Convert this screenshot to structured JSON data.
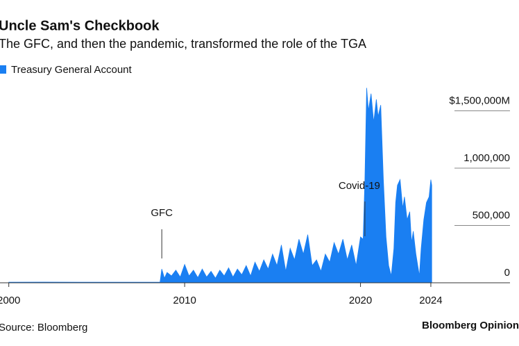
{
  "chart_data": {
    "type": "area",
    "title": "Uncle Sam's Checkbook",
    "subtitle": "The GFC, and then the pandemic, transformed the role of the TGA",
    "source": "Source: Bloomberg",
    "brand": "Bloomberg Opinion",
    "annotations": [
      "GFC",
      "Covid-19"
    ],
    "x": [
      2000,
      2002,
      2004,
      2006,
      2008.6,
      2008.7,
      2008.85,
      2009,
      2009.25,
      2009.5,
      2009.75,
      2010,
      2010.25,
      2010.5,
      2010.75,
      2011,
      2011.25,
      2011.5,
      2011.75,
      2012,
      2012.25,
      2012.5,
      2012.75,
      2013,
      2013.25,
      2013.5,
      2013.75,
      2014,
      2014.25,
      2014.5,
      2014.75,
      2015,
      2015.25,
      2015.5,
      2015.75,
      2016,
      2016.25,
      2016.5,
      2016.75,
      2017,
      2017.25,
      2017.5,
      2017.75,
      2018,
      2018.25,
      2018.5,
      2018.75,
      2019,
      2019.25,
      2019.5,
      2019.75,
      2020,
      2020.15,
      2020.25,
      2020.35,
      2020.45,
      2020.6,
      2020.75,
      2020.9,
      2021,
      2021.15,
      2021.3,
      2021.45,
      2021.6,
      2021.75,
      2021.9,
      2022,
      2022.1,
      2022.25,
      2022.4,
      2022.5,
      2022.65,
      2022.8,
      2022.9,
      2023,
      2023.15,
      2023.35,
      2023.45,
      2023.6,
      2023.75,
      2023.9,
      2024,
      2024.05
    ],
    "series": [
      {
        "name": "Treasury General Account",
        "color": "#1a7ff2",
        "values": [
          5000,
          6000,
          5000,
          5000,
          5000,
          120000,
          40000,
          90000,
          60000,
          110000,
          50000,
          160000,
          60000,
          110000,
          45000,
          120000,
          50000,
          100000,
          40000,
          110000,
          60000,
          130000,
          50000,
          120000,
          70000,
          150000,
          60000,
          180000,
          100000,
          200000,
          120000,
          250000,
          150000,
          330000,
          100000,
          300000,
          200000,
          380000,
          250000,
          420000,
          150000,
          200000,
          100000,
          250000,
          180000,
          350000,
          250000,
          380000,
          200000,
          330000,
          150000,
          400000,
          380000,
          900000,
          1700000,
          1500000,
          1650000,
          1400000,
          1600000,
          1450000,
          1550000,
          900000,
          400000,
          150000,
          60000,
          300000,
          700000,
          850000,
          900000,
          650000,
          750000,
          550000,
          620000,
          350000,
          450000,
          250000,
          60000,
          300000,
          550000,
          700000,
          750000,
          900000,
          850000
        ]
      }
    ],
    "xlim": [
      1999.5,
      2028.5
    ],
    "xticks": [
      2000,
      2010,
      2020,
      2024
    ],
    "ylim": [
      0,
      1800000
    ],
    "yticks": [
      0,
      {
        "value": 500000,
        "label": "500,000"
      },
      {
        "value": 1000000,
        "label": "1,000,000"
      },
      {
        "value": 1500000,
        "label": "$1,500,000M"
      }
    ]
  }
}
